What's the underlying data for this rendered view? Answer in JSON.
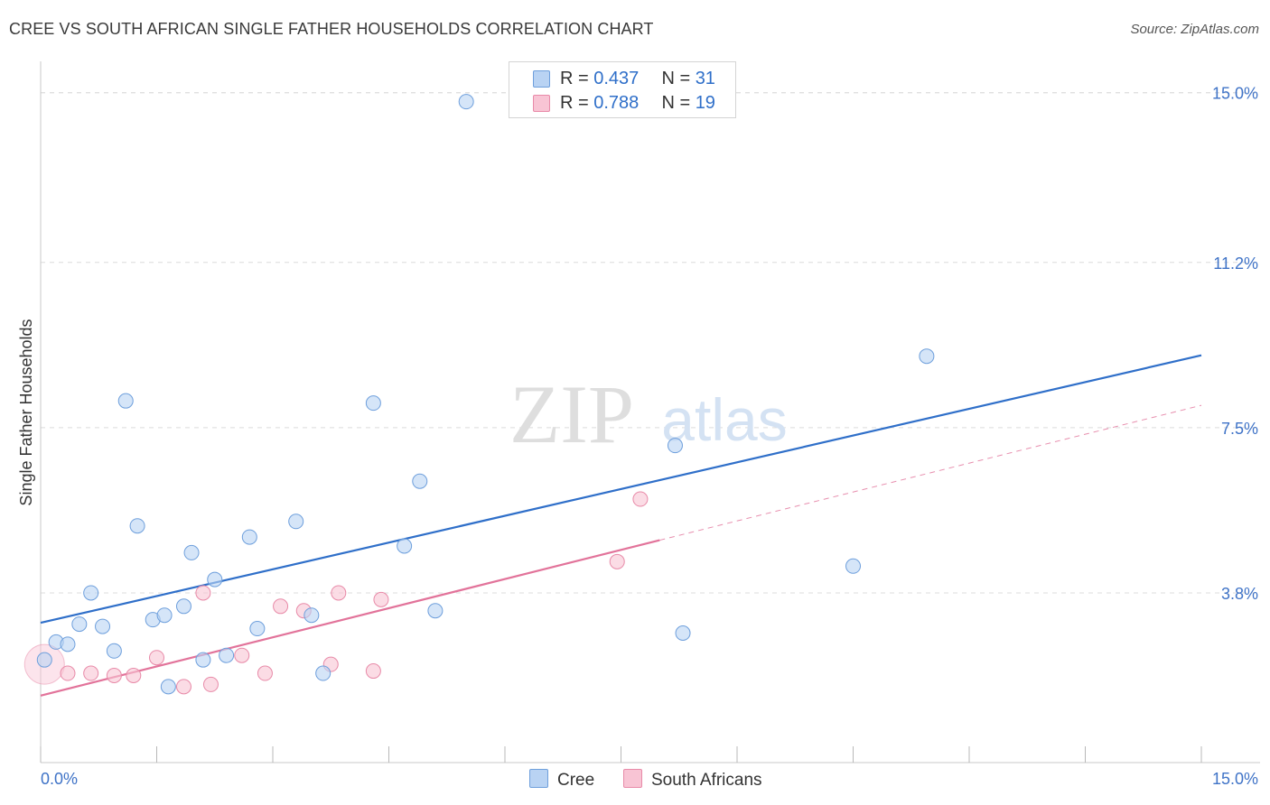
{
  "header": {
    "title": "CREE VS SOUTH AFRICAN SINGLE FATHER HOUSEHOLDS CORRELATION CHART",
    "source": "Source: ZipAtlas.com"
  },
  "legend": {
    "rows": [
      {
        "r_label": "R = ",
        "r_value": "0.437",
        "n_label": "N = ",
        "n_value": "31"
      },
      {
        "r_label": "R = ",
        "r_value": "0.788",
        "n_label": "N = ",
        "n_value": "19"
      }
    ],
    "bottom": [
      "Cree",
      "South Africans"
    ]
  },
  "watermark": {
    "zip": "ZIP",
    "atlas": "atlas"
  },
  "colors": {
    "cree_fill": "#b9d3f3",
    "cree_stroke": "#6e9fdc",
    "cree_line": "#2f6fc9",
    "sa_fill": "#f8c4d4",
    "sa_stroke": "#e88aa8",
    "sa_line": "#e2739a",
    "axis_label": "#3f73c7",
    "grid": "#dcdcdc"
  },
  "chart_data": {
    "type": "scatter",
    "title": "CREE VS SOUTH AFRICAN SINGLE FATHER HOUSEHOLDS CORRELATION CHART",
    "xlabel": "",
    "ylabel": "Single Father Households",
    "xlim": [
      0,
      15
    ],
    "ylim": [
      0,
      15.5
    ],
    "x_tick_labels": [
      "0.0%",
      "15.0%"
    ],
    "y_ticks": [
      3.8,
      7.5,
      11.2,
      15.0
    ],
    "y_tick_labels": [
      "3.8%",
      "7.5%",
      "11.2%",
      "15.0%"
    ],
    "series": [
      {
        "name": "Cree",
        "R": 0.437,
        "N": 31,
        "points": [
          [
            0.05,
            2.3
          ],
          [
            0.2,
            2.7
          ],
          [
            0.35,
            2.65
          ],
          [
            0.5,
            3.1
          ],
          [
            0.65,
            3.8
          ],
          [
            0.8,
            3.05
          ],
          [
            0.95,
            2.5
          ],
          [
            1.1,
            8.1
          ],
          [
            1.25,
            5.3
          ],
          [
            1.45,
            3.2
          ],
          [
            1.6,
            3.3
          ],
          [
            1.65,
            1.7
          ],
          [
            1.85,
            3.5
          ],
          [
            1.95,
            4.7
          ],
          [
            2.1,
            2.3
          ],
          [
            2.25,
            4.1
          ],
          [
            2.4,
            2.4
          ],
          [
            2.7,
            5.05
          ],
          [
            2.8,
            3.0
          ],
          [
            3.3,
            5.4
          ],
          [
            3.5,
            3.3
          ],
          [
            3.65,
            2.0
          ],
          [
            4.3,
            8.05
          ],
          [
            4.7,
            4.85
          ],
          [
            4.9,
            6.3
          ],
          [
            5.1,
            3.4
          ],
          [
            5.5,
            14.8
          ],
          [
            8.2,
            7.1
          ],
          [
            8.3,
            2.9
          ],
          [
            10.5,
            4.4
          ],
          [
            11.45,
            9.1
          ]
        ],
        "trend": {
          "x0": 0,
          "y0": 3.13,
          "x1": 15,
          "y1": 9.12
        }
      },
      {
        "name": "South Africans",
        "R": 0.788,
        "N": 19,
        "points": [
          [
            0.05,
            2.2
          ],
          [
            0.35,
            2.0
          ],
          [
            0.65,
            2.0
          ],
          [
            0.95,
            1.95
          ],
          [
            1.2,
            1.95
          ],
          [
            1.5,
            2.35
          ],
          [
            1.85,
            1.7
          ],
          [
            2.1,
            3.8
          ],
          [
            2.2,
            1.75
          ],
          [
            2.6,
            2.4
          ],
          [
            2.9,
            2.0
          ],
          [
            3.1,
            3.5
          ],
          [
            3.4,
            3.4
          ],
          [
            3.75,
            2.2
          ],
          [
            3.85,
            3.8
          ],
          [
            4.3,
            2.05
          ],
          [
            4.4,
            3.65
          ],
          [
            7.45,
            4.5
          ],
          [
            7.75,
            5.9
          ]
        ],
        "trend": {
          "x0": 0,
          "y0": 1.5,
          "x1": 8.0,
          "y1": 4.98,
          "dash_to_x": 15,
          "dash_to_y": 8.0
        }
      }
    ]
  }
}
